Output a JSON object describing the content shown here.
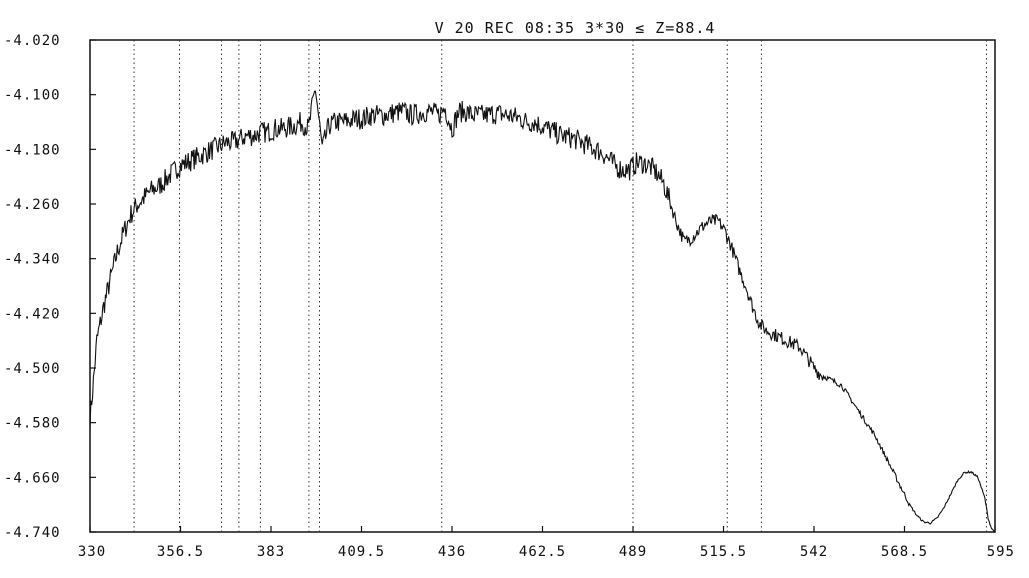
{
  "chart_data": {
    "type": "line",
    "title": "V 20 REC 08:35   3*30 ≤ Z=88.4",
    "xlabel": "",
    "ylabel": "",
    "xlim": [
      330,
      595
    ],
    "ylim": [
      -4.74,
      -4.02
    ],
    "x_ticks": [
      330,
      356.5,
      383,
      409.5,
      436,
      462.5,
      489,
      515.5,
      542,
      568.5,
      595
    ],
    "x_tick_labels": [
      "330",
      "356.5",
      "383",
      "409.5",
      "436",
      "462.5",
      "489",
      "515.5",
      "542",
      "568.5",
      "595"
    ],
    "y_ticks": [
      -4.02,
      -4.1,
      -4.18,
      -4.26,
      -4.34,
      -4.42,
      -4.5,
      -4.58,
      -4.66,
      -4.74
    ],
    "y_tick_labels": [
      "-4.020",
      "-4.100",
      "-4.180",
      "-4.260",
      "-4.340",
      "-4.420",
      "-4.500",
      "-4.580",
      "-4.660",
      "-4.740"
    ],
    "vertical_markers": [
      342.9,
      356.2,
      368.5,
      373.6,
      379.9,
      394.1,
      397.2,
      433.0,
      489.0,
      516.6,
      526.6,
      592.5
    ],
    "series": [
      {
        "name": "",
        "color": "#111111",
        "x": [
          330,
          331,
          332,
          334,
          336,
          338,
          340,
          342,
          344,
          346,
          348,
          350,
          352,
          354,
          356,
          358,
          360,
          362,
          364,
          366,
          368,
          370,
          372,
          374,
          376,
          378,
          380,
          382,
          384,
          386,
          388,
          390,
          392,
          394,
          396,
          398,
          400,
          402,
          404,
          406,
          408,
          410,
          412,
          414,
          416,
          418,
          420,
          422,
          424,
          426,
          428,
          430,
          432,
          434,
          436,
          438,
          440,
          442,
          444,
          446,
          448,
          450,
          452,
          454,
          456,
          458,
          460,
          462,
          464,
          466,
          468,
          470,
          472,
          474,
          476,
          478,
          480,
          482,
          484,
          486,
          488,
          490,
          492,
          494,
          496,
          498,
          500,
          502,
          504,
          506,
          508,
          510,
          512,
          514,
          516,
          518,
          520,
          522,
          524,
          526,
          528,
          530,
          532,
          534,
          536,
          538,
          540,
          542,
          544,
          546,
          548,
          550,
          552,
          554,
          556,
          558,
          560,
          562,
          564,
          566,
          568,
          570,
          572,
          574,
          576,
          578,
          580,
          582,
          584,
          586,
          588,
          590,
          592,
          593,
          594,
          595
        ],
        "y": [
          -4.575,
          -4.52,
          -4.46,
          -4.41,
          -4.37,
          -4.33,
          -4.3,
          -4.275,
          -4.26,
          -4.25,
          -4.24,
          -4.235,
          -4.225,
          -4.215,
          -4.205,
          -4.2,
          -4.195,
          -4.19,
          -4.185,
          -4.18,
          -4.175,
          -4.17,
          -4.17,
          -4.165,
          -4.16,
          -4.16,
          -4.155,
          -4.155,
          -4.15,
          -4.15,
          -4.148,
          -4.145,
          -4.14,
          -4.15,
          -4.09,
          -4.18,
          -4.145,
          -4.14,
          -4.14,
          -4.138,
          -4.135,
          -4.135,
          -4.13,
          -4.13,
          -4.13,
          -4.128,
          -4.125,
          -4.125,
          -4.13,
          -4.128,
          -4.125,
          -4.125,
          -4.13,
          -4.12,
          -4.15,
          -4.125,
          -4.125,
          -4.13,
          -4.13,
          -4.13,
          -4.128,
          -4.128,
          -4.13,
          -4.132,
          -4.135,
          -4.14,
          -4.14,
          -4.145,
          -4.15,
          -4.155,
          -4.16,
          -4.162,
          -4.165,
          -4.17,
          -4.175,
          -4.18,
          -4.185,
          -4.195,
          -4.205,
          -4.21,
          -4.21,
          -4.2,
          -4.2,
          -4.205,
          -4.215,
          -4.23,
          -4.26,
          -4.29,
          -4.315,
          -4.31,
          -4.3,
          -4.29,
          -4.285,
          -4.285,
          -4.3,
          -4.325,
          -4.355,
          -4.38,
          -4.41,
          -4.435,
          -4.445,
          -4.45,
          -4.455,
          -4.46,
          -4.465,
          -4.47,
          -4.485,
          -4.5,
          -4.51,
          -4.515,
          -4.52,
          -4.525,
          -4.54,
          -4.555,
          -4.57,
          -4.585,
          -4.6,
          -4.62,
          -4.64,
          -4.66,
          -4.68,
          -4.7,
          -4.715,
          -4.725,
          -4.727,
          -4.72,
          -4.705,
          -4.685,
          -4.665,
          -4.653,
          -4.652,
          -4.66,
          -4.69,
          -4.72,
          -4.735,
          -4.74
        ]
      }
    ]
  }
}
